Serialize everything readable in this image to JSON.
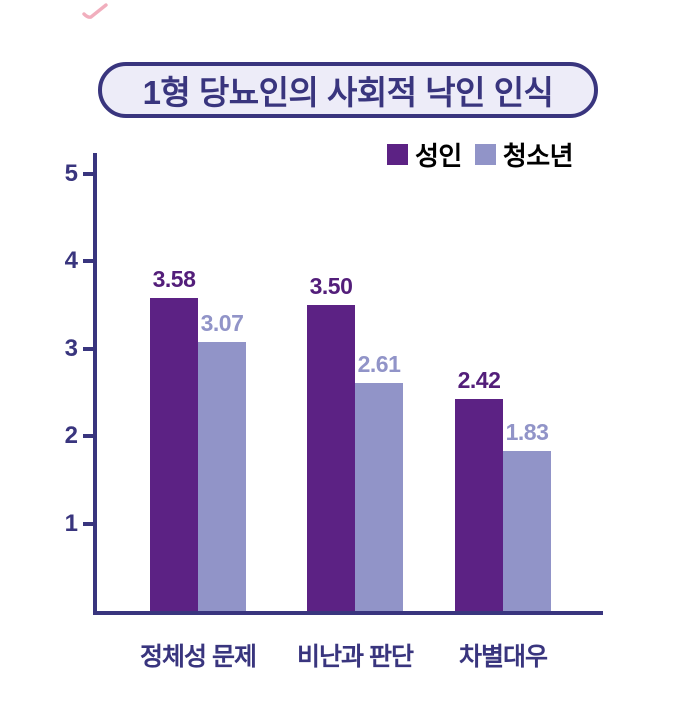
{
  "title": {
    "text": "1형 당뇨인의 사회적 낙인 인식"
  },
  "decorations": {
    "pink_mark_icon": "pink-scribble-check"
  },
  "legend": {
    "items": [
      {
        "label": "성인",
        "color": "#5C2284"
      },
      {
        "label": "청소년",
        "color": "#9194C8"
      }
    ]
  },
  "colors": {
    "axis": "#39357E",
    "title_text": "#39357E",
    "title_fill": "#EDECF8",
    "adult_bar": "#5C2284",
    "adult_label": "#531E7A",
    "youth_bar": "#9194C8",
    "youth_label": "#9194C8",
    "pink_mark": "#EFA5B6"
  },
  "chart_data": {
    "type": "bar",
    "title": "1형 당뇨인의 사회적 낙인 인식",
    "categories": [
      "정체성 문제",
      "비난과 판단",
      "차별대우"
    ],
    "series": [
      {
        "name": "성인",
        "color": "#5C2284",
        "label_color": "#531E7A",
        "values": [
          3.58,
          3.5,
          2.42
        ]
      },
      {
        "name": "청소년",
        "color": "#9194C8",
        "label_color": "#9194C8",
        "values": [
          3.07,
          2.61,
          1.83
        ]
      }
    ],
    "yticks": [
      5,
      4,
      3,
      2,
      1
    ],
    "ylim": [
      0,
      5.25
    ],
    "value_label_decimals": 2,
    "grid": false,
    "legend_position": "top-right",
    "xlabel": "",
    "ylabel": ""
  }
}
